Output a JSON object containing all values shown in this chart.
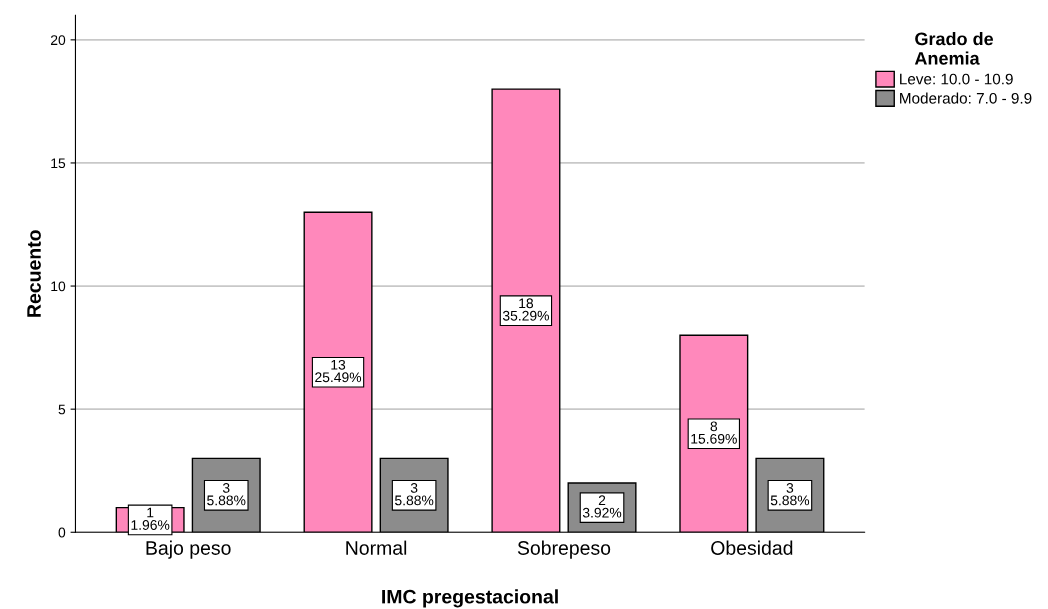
{
  "chart_data": {
    "type": "bar",
    "xlabel": "IMC pregestacional",
    "ylabel": "Recuento",
    "legend_title": "Grado de\nAnemia",
    "categories": [
      "Bajo peso",
      "Normal",
      "Sobrepeso",
      "Obesidad"
    ],
    "series": [
      {
        "name": "Leve: 10.0 - 10.9",
        "color": "#ff88bb",
        "values": [
          1,
          13,
          18,
          8
        ],
        "value_labels": [
          "1\n1.96%",
          "13\n25.49%",
          "18\n35.29%",
          "8\n15.69%"
        ]
      },
      {
        "name": "Moderado: 7.0 - 9.9",
        "color": "#8c8c8c",
        "values": [
          3,
          3,
          2,
          3
        ],
        "value_labels": [
          "3\n5.88%",
          "3\n5.88%",
          "2\n3.92%",
          "3\n5.88%"
        ]
      }
    ],
    "ylim": [
      0,
      21
    ],
    "yticks": [
      0,
      5,
      10,
      15,
      20
    ],
    "grid": "y",
    "legend": "top right"
  }
}
